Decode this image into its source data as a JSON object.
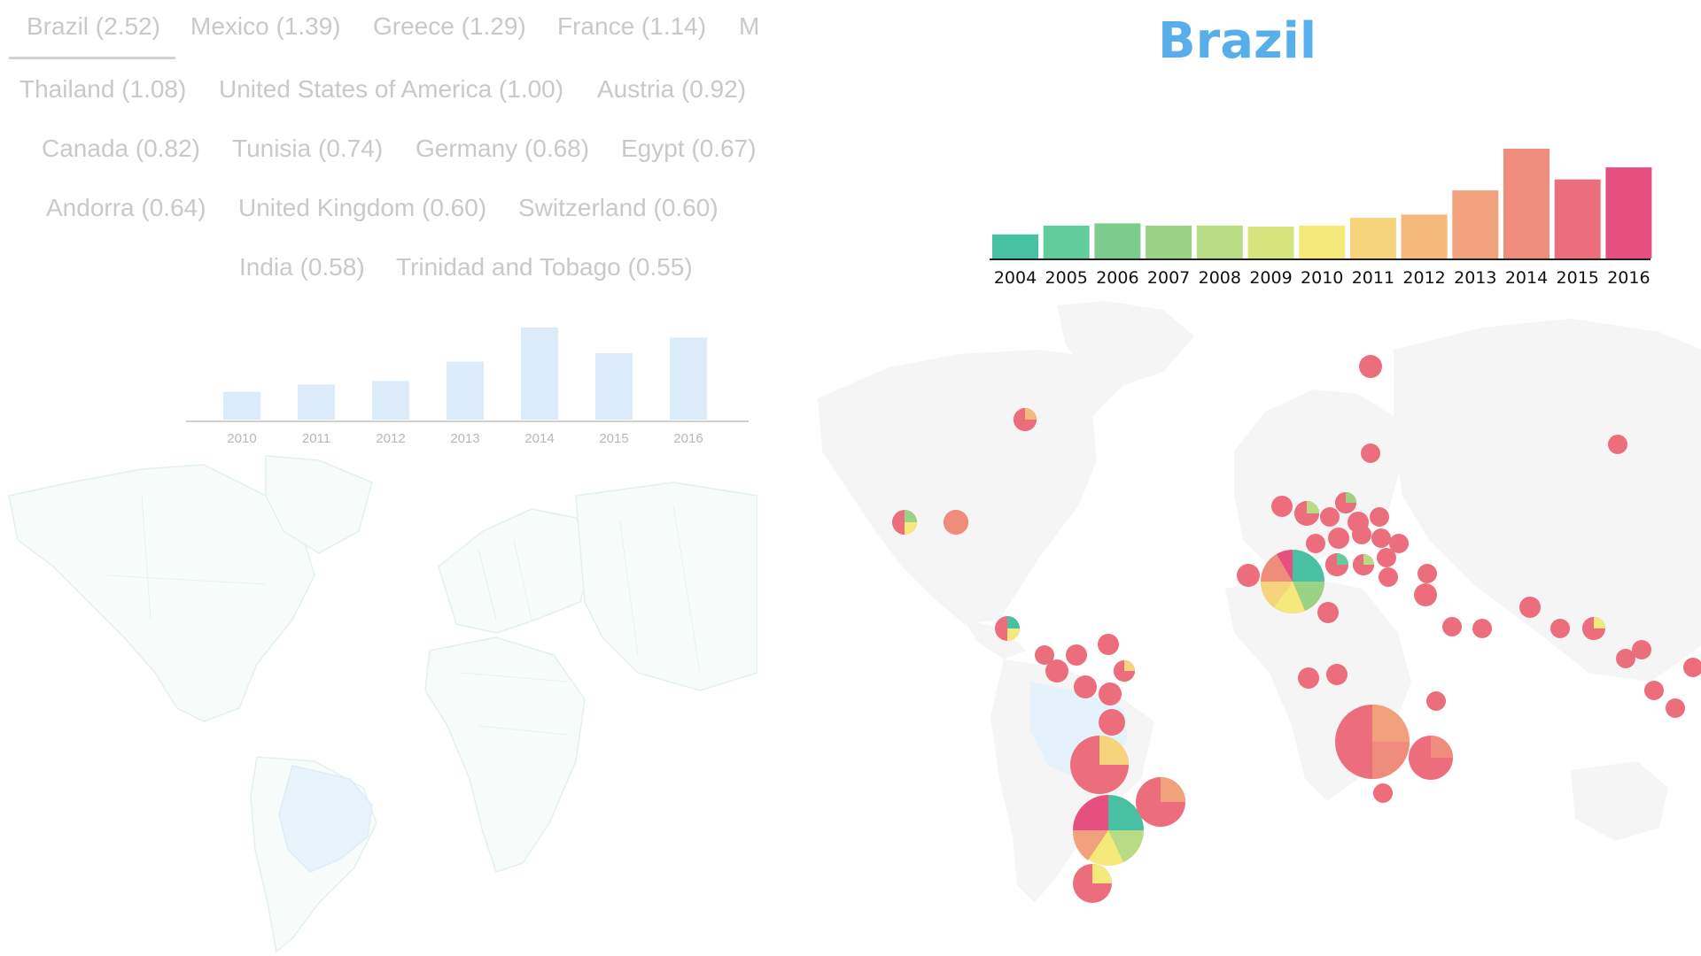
{
  "country_tabs": [
    {
      "label": "Brazil (2.52)",
      "active": true
    },
    {
      "label": "Mexico (1.39)"
    },
    {
      "label": "Greece (1.29)"
    },
    {
      "label": "France (1.14)"
    },
    {
      "label": "M"
    },
    {
      "label": "Thailand (1.08)"
    },
    {
      "label": "United States of America (1.00)"
    },
    {
      "label": "Austria (0.92)"
    },
    {
      "label": "Canada (0.82)"
    },
    {
      "label": "Tunisia (0.74)"
    },
    {
      "label": "Germany (0.68)"
    },
    {
      "label": "Egypt (0.67)"
    },
    {
      "label": "Andorra (0.64)"
    },
    {
      "label": "United Kingdom (0.60)"
    },
    {
      "label": "Switzerland (0.60)"
    },
    {
      "label": "India (0.58)"
    },
    {
      "label": "Trinidad and Tobago (0.55)"
    }
  ],
  "country_title": "Brazil",
  "chart_data": [
    {
      "type": "bar",
      "categories": [
        "2010",
        "2011",
        "2012",
        "2013",
        "2014",
        "2015",
        "2016"
      ],
      "values": [
        30,
        38,
        42,
        63,
        100,
        72,
        89
      ],
      "color": "#dcebfa"
    },
    {
      "type": "bar",
      "categories": [
        "2004",
        "2005",
        "2006",
        "2007",
        "2008",
        "2009",
        "2010",
        "2011",
        "2012",
        "2013",
        "2014",
        "2015",
        "2016"
      ],
      "values": [
        22,
        30,
        32,
        30,
        30,
        29,
        30,
        37,
        40,
        62,
        100,
        72,
        83
      ],
      "colors": [
        "#48c1a3",
        "#62cc9b",
        "#7dcc8d",
        "#9bd285",
        "#b8dc85",
        "#d6e47d",
        "#f5e97c",
        "#f6d47c",
        "#f5b97c",
        "#f1a17c",
        "#ef8c7b",
        "#ec6e7d",
        "#e65080"
      ]
    }
  ],
  "map_colors": {
    "land": "#f5f5f5",
    "brazil": "#e6f2fb",
    "pie_main": "#ec6e7d"
  }
}
